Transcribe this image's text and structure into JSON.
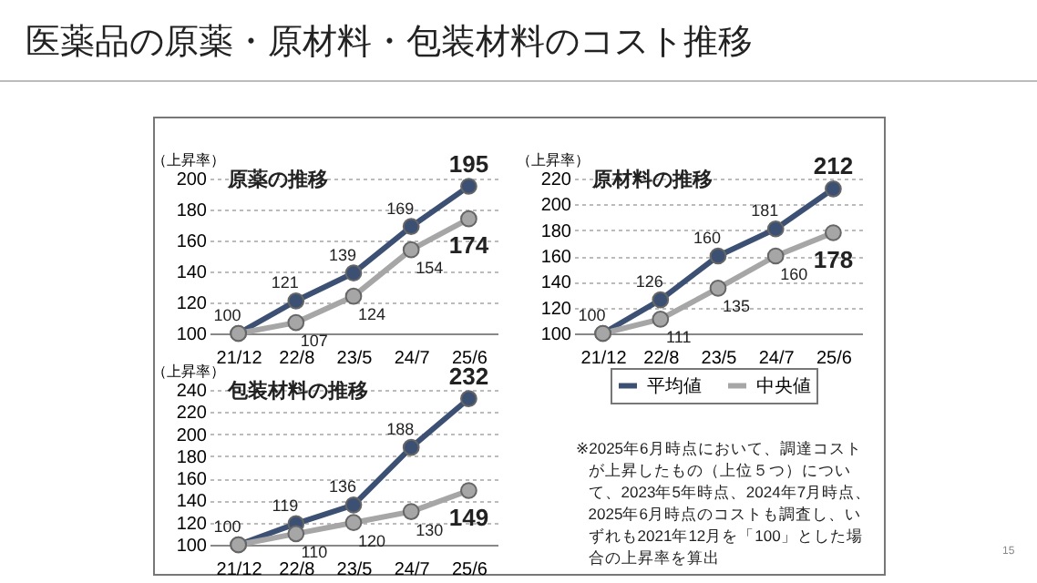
{
  "chart_data": [
    {
      "type": "other",
      "title": "医薬品の原薬・原材料・包装材料のコスト推移",
      "annotations": [
        "※2025年6月時点において、調達コストが上昇したもの（上位５つ）について、2023年5年時点、2024年7月時点、2025年6月時点のコストも調査し、いずれも2021年12月を「100」とした場合の上昇率を算出",
        "15"
      ]
    },
    {
      "type": "line",
      "title": "原薬の推移",
      "ylabel": "（上昇率）",
      "categories": [
        "21/12",
        "22/8",
        "23/5",
        "24/7",
        "25/6"
      ],
      "ylim": [
        100,
        200
      ],
      "yticks": [
        100,
        120,
        140,
        160,
        180,
        200
      ],
      "grid": "y",
      "marker": "circle",
      "line_style": "solid",
      "series": [
        {
          "color": "#3c5073",
          "values": [
            100,
            121,
            139,
            169,
            195
          ],
          "value_labels": [
            "100",
            "121",
            "139",
            "169",
            "195"
          ]
        },
        {
          "color": "#a6a6a6",
          "values": [
            100,
            107,
            124,
            154,
            174
          ],
          "value_labels": [
            null,
            "107",
            "124",
            "154",
            "174"
          ]
        }
      ]
    },
    {
      "type": "line",
      "title": "原材料の推移",
      "ylabel": "（上昇率）",
      "categories": [
        "21/12",
        "22/8",
        "23/5",
        "24/7",
        "25/6"
      ],
      "ylim": [
        100,
        220
      ],
      "yticks": [
        100,
        120,
        140,
        160,
        180,
        200,
        220
      ],
      "grid": "y",
      "marker": "circle",
      "line_style": "solid",
      "series": [
        {
          "color": "#3c5073",
          "values": [
            100,
            126,
            160,
            181,
            212
          ],
          "value_labels": [
            "100",
            "126",
            "160",
            "181",
            "212"
          ]
        },
        {
          "color": "#a6a6a6",
          "values": [
            100,
            111,
            135,
            160,
            178
          ],
          "value_labels": [
            null,
            "111",
            "135",
            "160",
            "178"
          ]
        }
      ]
    },
    {
      "type": "line",
      "title": "包装材料の推移",
      "ylabel": "（上昇率）",
      "categories": [
        "21/12",
        "22/8",
        "23/5",
        "24/7",
        "25/6"
      ],
      "ylim": [
        100,
        240
      ],
      "yticks": [
        100,
        120,
        140,
        160,
        180,
        200,
        220,
        240
      ],
      "grid": "y",
      "marker": "circle",
      "line_style": "solid",
      "legend": "right",
      "series": [
        {
          "name": "平均値",
          "color": "#3c5073",
          "values": [
            100,
            119,
            136,
            188,
            232
          ],
          "value_labels": [
            "100",
            "119",
            "136",
            "188",
            "232"
          ]
        },
        {
          "name": "中央値",
          "color": "#a6a6a6",
          "values": [
            100,
            110,
            120,
            130,
            149
          ],
          "value_labels": [
            null,
            "110",
            "120",
            "130",
            "149"
          ]
        }
      ]
    }
  ]
}
